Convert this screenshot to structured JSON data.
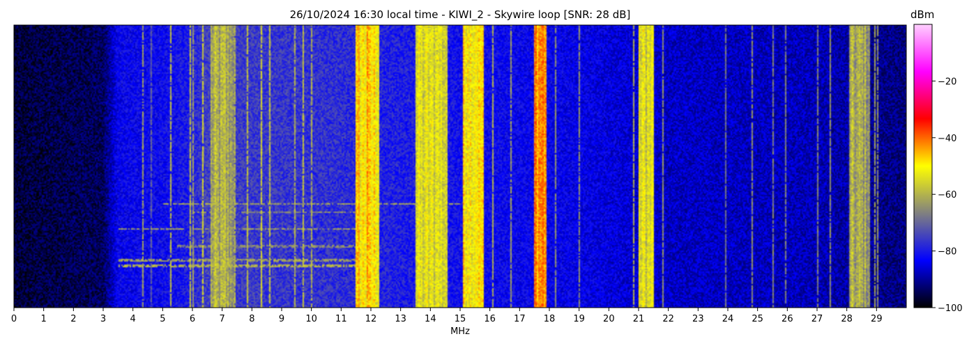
{
  "chart_data": {
    "type": "heatmap",
    "title": "26/10/2024 16:30 local time - KIWI_2 - Skywire loop [SNR: 28 dB]",
    "xlabel": "MHz",
    "ylabel": "",
    "xlim": [
      0,
      30
    ],
    "x_ticks": [
      0,
      1,
      2,
      3,
      4,
      5,
      6,
      7,
      8,
      9,
      10,
      11,
      12,
      13,
      14,
      15,
      16,
      17,
      18,
      19,
      20,
      21,
      22,
      23,
      24,
      25,
      26,
      27,
      28,
      29
    ],
    "colorbar": {
      "label": "dBm",
      "range": [
        -100,
        0
      ],
      "ticks": [
        -20,
        -40,
        -60,
        -80,
        -100
      ],
      "colormap": [
        "#000000",
        "#0000ff",
        "#808080",
        "#ffff00",
        "#ff0000",
        "#ff00ff",
        "#ffd0ff"
      ]
    },
    "noise_floor_dbm": [
      [
        0,
        -96
      ],
      [
        3,
        -94
      ],
      [
        3.5,
        -83
      ],
      [
        5,
        -82
      ],
      [
        5.8,
        -80
      ],
      [
        6.5,
        -75
      ],
      [
        10.5,
        -77
      ],
      [
        11.5,
        -78
      ],
      [
        15.8,
        -82
      ],
      [
        19,
        -84
      ],
      [
        22,
        -87
      ],
      [
        27,
        -88
      ],
      [
        30,
        -92
      ]
    ],
    "broadband_regions": [
      {
        "from": 6.6,
        "to": 7.4,
        "level_dbm": -62
      },
      {
        "from": 11.5,
        "to": 12.3,
        "level_dbm": -50
      },
      {
        "from": 13.5,
        "to": 14.6,
        "level_dbm": -55
      },
      {
        "from": 15.1,
        "to": 15.8,
        "level_dbm": -50
      },
      {
        "from": 17.5,
        "to": 17.9,
        "level_dbm": -42
      },
      {
        "from": 21.0,
        "to": 21.5,
        "level_dbm": -55
      },
      {
        "from": 28.1,
        "to": 28.8,
        "level_dbm": -62
      }
    ],
    "carriers": [
      {
        "mhz": 4.3,
        "dbm": -62
      },
      {
        "mhz": 4.6,
        "dbm": -70
      },
      {
        "mhz": 5.25,
        "dbm": -58
      },
      {
        "mhz": 5.9,
        "dbm": -58
      },
      {
        "mhz": 6.0,
        "dbm": -62
      },
      {
        "mhz": 6.35,
        "dbm": -55
      },
      {
        "mhz": 7.1,
        "dbm": -58
      },
      {
        "mhz": 7.4,
        "dbm": -60
      },
      {
        "mhz": 7.85,
        "dbm": -58
      },
      {
        "mhz": 8.3,
        "dbm": -55
      },
      {
        "mhz": 8.6,
        "dbm": -58
      },
      {
        "mhz": 9.4,
        "dbm": -60
      },
      {
        "mhz": 9.7,
        "dbm": -58
      },
      {
        "mhz": 10.0,
        "dbm": -60
      },
      {
        "mhz": 11.6,
        "dbm": -45
      },
      {
        "mhz": 11.85,
        "dbm": -42
      },
      {
        "mhz": 13.6,
        "dbm": -55
      },
      {
        "mhz": 14.2,
        "dbm": -52
      },
      {
        "mhz": 15.25,
        "dbm": -48
      },
      {
        "mhz": 15.5,
        "dbm": -50
      },
      {
        "mhz": 15.65,
        "dbm": -48
      },
      {
        "mhz": 16.1,
        "dbm": -60
      },
      {
        "mhz": 16.7,
        "dbm": -62
      },
      {
        "mhz": 17.5,
        "dbm": -50
      },
      {
        "mhz": 17.75,
        "dbm": -42
      },
      {
        "mhz": 18.2,
        "dbm": -64
      },
      {
        "mhz": 19.0,
        "dbm": -64
      },
      {
        "mhz": 20.8,
        "dbm": -60
      },
      {
        "mhz": 21.4,
        "dbm": -52
      },
      {
        "mhz": 21.8,
        "dbm": -64
      },
      {
        "mhz": 23.9,
        "dbm": -68
      },
      {
        "mhz": 24.8,
        "dbm": -64
      },
      {
        "mhz": 25.5,
        "dbm": -66
      },
      {
        "mhz": 25.9,
        "dbm": -66
      },
      {
        "mhz": 27.0,
        "dbm": -66
      },
      {
        "mhz": 27.4,
        "dbm": -64
      },
      {
        "mhz": 28.9,
        "dbm": -62
      },
      {
        "mhz": 29.0,
        "dbm": -64
      }
    ],
    "interference_bursts": [
      {
        "row_fraction": 0.63,
        "from_mhz": 5.0,
        "to_mhz": 15.0,
        "dbm": -62
      },
      {
        "row_fraction": 0.66,
        "from_mhz": 6.0,
        "to_mhz": 11.5,
        "dbm": -65
      },
      {
        "row_fraction": 0.72,
        "from_mhz": 3.5,
        "to_mhz": 11.5,
        "dbm": -62
      },
      {
        "row_fraction": 0.78,
        "from_mhz": 5.5,
        "to_mhz": 11.5,
        "dbm": -65
      },
      {
        "row_fraction": 0.83,
        "from_mhz": 3.5,
        "to_mhz": 11.5,
        "dbm": -62
      },
      {
        "row_fraction": 0.85,
        "from_mhz": 3.5,
        "to_mhz": 11.5,
        "dbm": -60
      }
    ]
  }
}
